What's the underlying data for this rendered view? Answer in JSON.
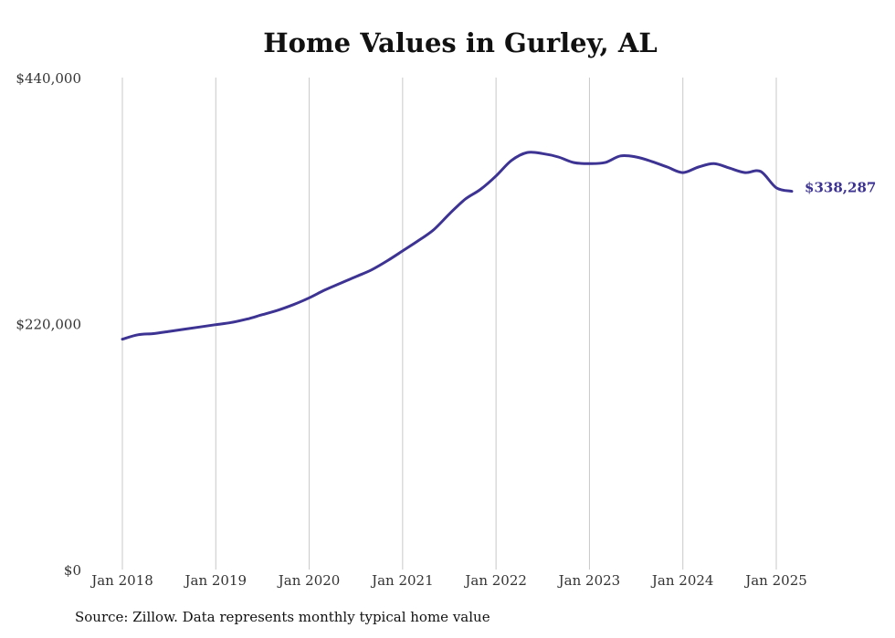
{
  "chart_data": {
    "type": "line",
    "title": "Home Values in Gurley, AL",
    "xlabel": "",
    "ylabel": "",
    "ylim": [
      0,
      440000
    ],
    "y_ticks": [
      0,
      220000,
      440000
    ],
    "y_tick_labels": [
      "$0",
      "$220,000",
      "$440,000"
    ],
    "x_ticks": [
      "Jan 2018",
      "Jan 2019",
      "Jan 2020",
      "Jan 2021",
      "Jan 2022",
      "Jan 2023",
      "Jan 2024",
      "Jan 2025"
    ],
    "x_tick_years": [
      2018,
      2019,
      2020,
      2021,
      2022,
      2023,
      2024,
      2025
    ],
    "grid": "vertical",
    "series": [
      {
        "color": "#3d3393",
        "end_label": "$338,287",
        "x": [
          "2018-01",
          "2018-03",
          "2018-05",
          "2018-07",
          "2018-09",
          "2018-11",
          "2019-01",
          "2019-03",
          "2019-05",
          "2019-07",
          "2019-09",
          "2019-11",
          "2020-01",
          "2020-03",
          "2020-05",
          "2020-07",
          "2020-09",
          "2020-11",
          "2021-01",
          "2021-03",
          "2021-05",
          "2021-07",
          "2021-09",
          "2021-11",
          "2022-01",
          "2022-03",
          "2022-05",
          "2022-07",
          "2022-09",
          "2022-11",
          "2023-01",
          "2023-03",
          "2023-05",
          "2023-07",
          "2023-09",
          "2023-11",
          "2024-01",
          "2024-03",
          "2024-05",
          "2024-07",
          "2024-09",
          "2024-11",
          "2025-01",
          "2025-03"
        ],
        "values": [
          206000,
          210000,
          211000,
          213000,
          215000,
          217000,
          219000,
          221000,
          224000,
          228000,
          232000,
          237000,
          243000,
          250000,
          256000,
          262000,
          268000,
          276000,
          285000,
          294000,
          304000,
          318000,
          331000,
          340000,
          352000,
          366000,
          373000,
          372000,
          369000,
          364000,
          363000,
          364000,
          370000,
          369000,
          365000,
          360000,
          355000,
          360000,
          363000,
          359000,
          355000,
          356000,
          341500,
          338287
        ]
      }
    ]
  },
  "footer": {
    "source": "Source: Zillow. Data represents monthly typical home value"
  }
}
